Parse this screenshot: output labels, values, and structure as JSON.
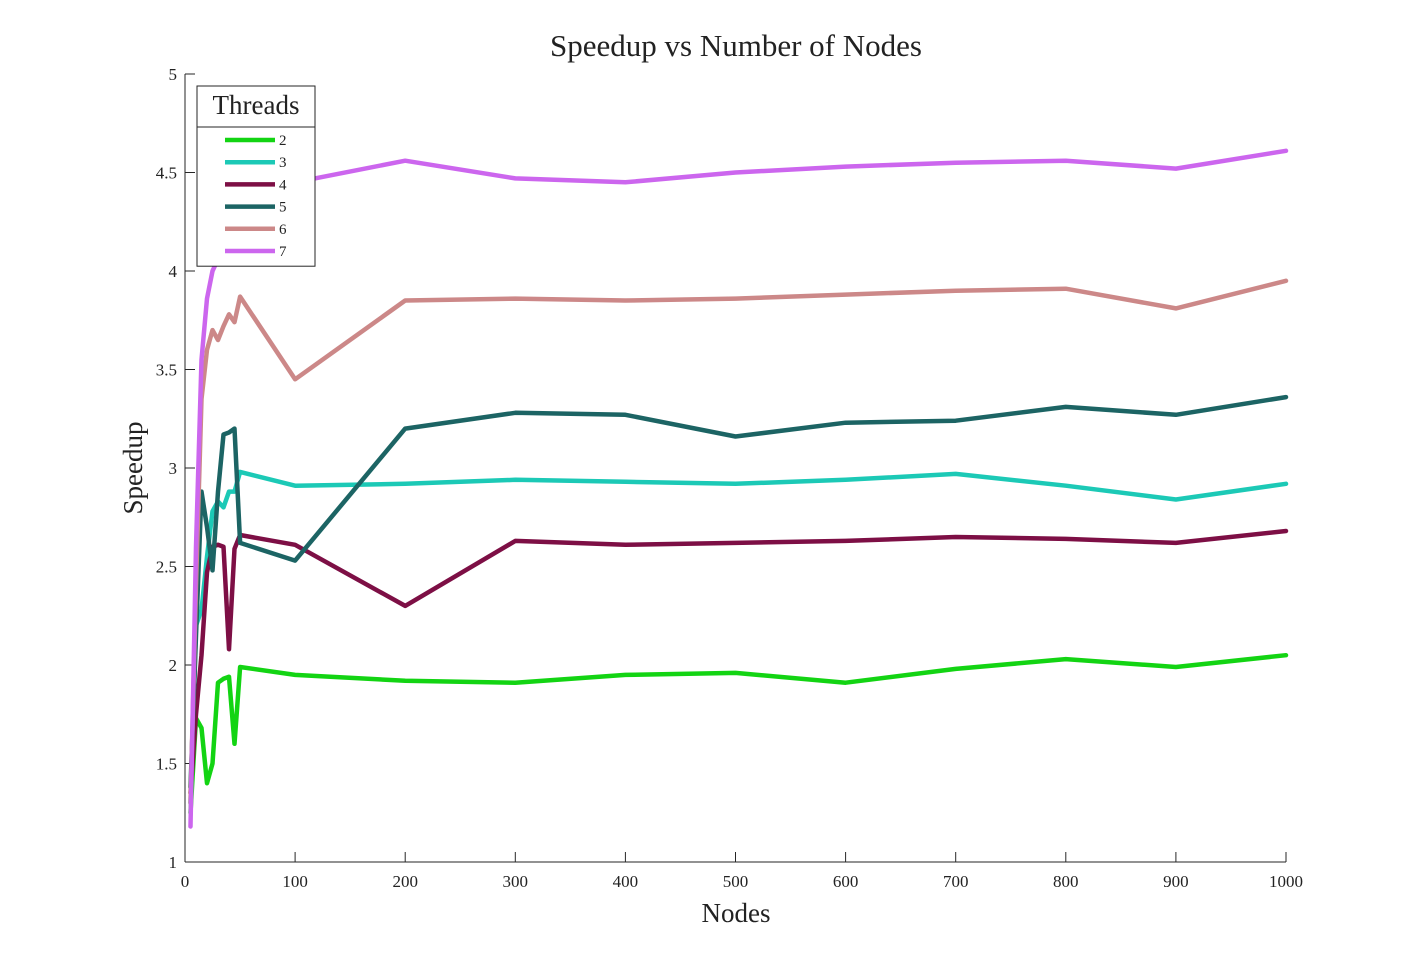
{
  "chart_data": {
    "type": "line",
    "title": "Speedup vs Number of Nodes",
    "xlabel": "Nodes",
    "ylabel": "Speedup",
    "xlim": [
      0,
      1000
    ],
    "ylim": [
      1,
      5
    ],
    "xticks": [
      0,
      100,
      200,
      300,
      400,
      500,
      600,
      700,
      800,
      900,
      1000
    ],
    "yticks": [
      1,
      1.5,
      2,
      2.5,
      3,
      3.5,
      4,
      4.5,
      5
    ],
    "xtick_labels": [
      "0",
      "100",
      "200",
      "300",
      "400",
      "500",
      "600",
      "700",
      "800",
      "900",
      "1000"
    ],
    "ytick_labels": [
      "1",
      "1.5",
      "2",
      "2.5",
      "3",
      "3.5",
      "4",
      "4.5",
      "5"
    ],
    "grid": false,
    "legend": {
      "title": "Threads",
      "position": "top-left"
    },
    "series": [
      {
        "name": "2",
        "color": "#13d413",
        "x": [
          5,
          10,
          15,
          20,
          25,
          30,
          35,
          40,
          45,
          50,
          100,
          200,
          300,
          400,
          500,
          600,
          700,
          800,
          900,
          1000
        ],
        "y": [
          1.25,
          1.73,
          1.68,
          1.4,
          1.5,
          1.91,
          1.93,
          1.94,
          1.6,
          1.99,
          1.95,
          1.92,
          1.91,
          1.95,
          1.96,
          1.91,
          1.98,
          2.03,
          1.99,
          2.05
        ]
      },
      {
        "name": "3",
        "color": "#1cc9b6",
        "x": [
          5,
          10,
          15,
          20,
          25,
          30,
          35,
          40,
          45,
          50,
          100,
          200,
          300,
          400,
          500,
          600,
          700,
          800,
          900,
          1000
        ],
        "y": [
          1.3,
          2.2,
          2.28,
          2.55,
          2.78,
          2.83,
          2.8,
          2.88,
          2.88,
          2.98,
          2.91,
          2.92,
          2.94,
          2.93,
          2.92,
          2.94,
          2.97,
          2.91,
          2.84,
          2.92
        ]
      },
      {
        "name": "4",
        "color": "#7d0f45",
        "x": [
          5,
          10,
          15,
          20,
          25,
          30,
          35,
          40,
          45,
          50,
          100,
          200,
          300,
          400,
          500,
          600,
          700,
          800,
          900,
          1000
        ],
        "y": [
          1.35,
          1.75,
          2.05,
          2.47,
          2.6,
          2.61,
          2.6,
          2.08,
          2.59,
          2.66,
          2.61,
          2.3,
          2.63,
          2.61,
          2.62,
          2.63,
          2.65,
          2.64,
          2.62,
          2.68
        ]
      },
      {
        "name": "5",
        "color": "#1c6464",
        "x": [
          5,
          10,
          15,
          20,
          25,
          30,
          35,
          40,
          45,
          50,
          100,
          200,
          300,
          400,
          500,
          600,
          700,
          800,
          900,
          1000
        ],
        "y": [
          1.38,
          2.15,
          2.88,
          2.7,
          2.48,
          2.88,
          3.17,
          3.18,
          3.2,
          2.62,
          2.53,
          3.2,
          3.28,
          3.27,
          3.16,
          3.23,
          3.24,
          3.31,
          3.27,
          3.36
        ]
      },
      {
        "name": "6",
        "color": "#cc8888",
        "x": [
          5,
          10,
          15,
          20,
          25,
          30,
          35,
          40,
          45,
          50,
          100,
          200,
          300,
          400,
          500,
          600,
          700,
          800,
          900,
          1000
        ],
        "y": [
          1.3,
          2.4,
          3.35,
          3.6,
          3.7,
          3.65,
          3.72,
          3.78,
          3.74,
          3.87,
          3.45,
          3.85,
          3.86,
          3.85,
          3.86,
          3.88,
          3.9,
          3.91,
          3.81,
          3.95
        ]
      },
      {
        "name": "7",
        "color": "#cc66ee",
        "x": [
          5,
          10,
          15,
          20,
          25,
          30,
          35,
          40,
          45,
          50,
          100,
          200,
          300,
          400,
          500,
          600,
          700,
          800,
          900,
          1000
        ],
        "y": [
          1.18,
          2.6,
          3.55,
          3.86,
          4.0,
          4.06,
          4.2,
          4.32,
          4.42,
          4.43,
          4.45,
          4.56,
          4.47,
          4.45,
          4.5,
          4.53,
          4.55,
          4.56,
          4.52,
          4.61
        ]
      }
    ]
  }
}
